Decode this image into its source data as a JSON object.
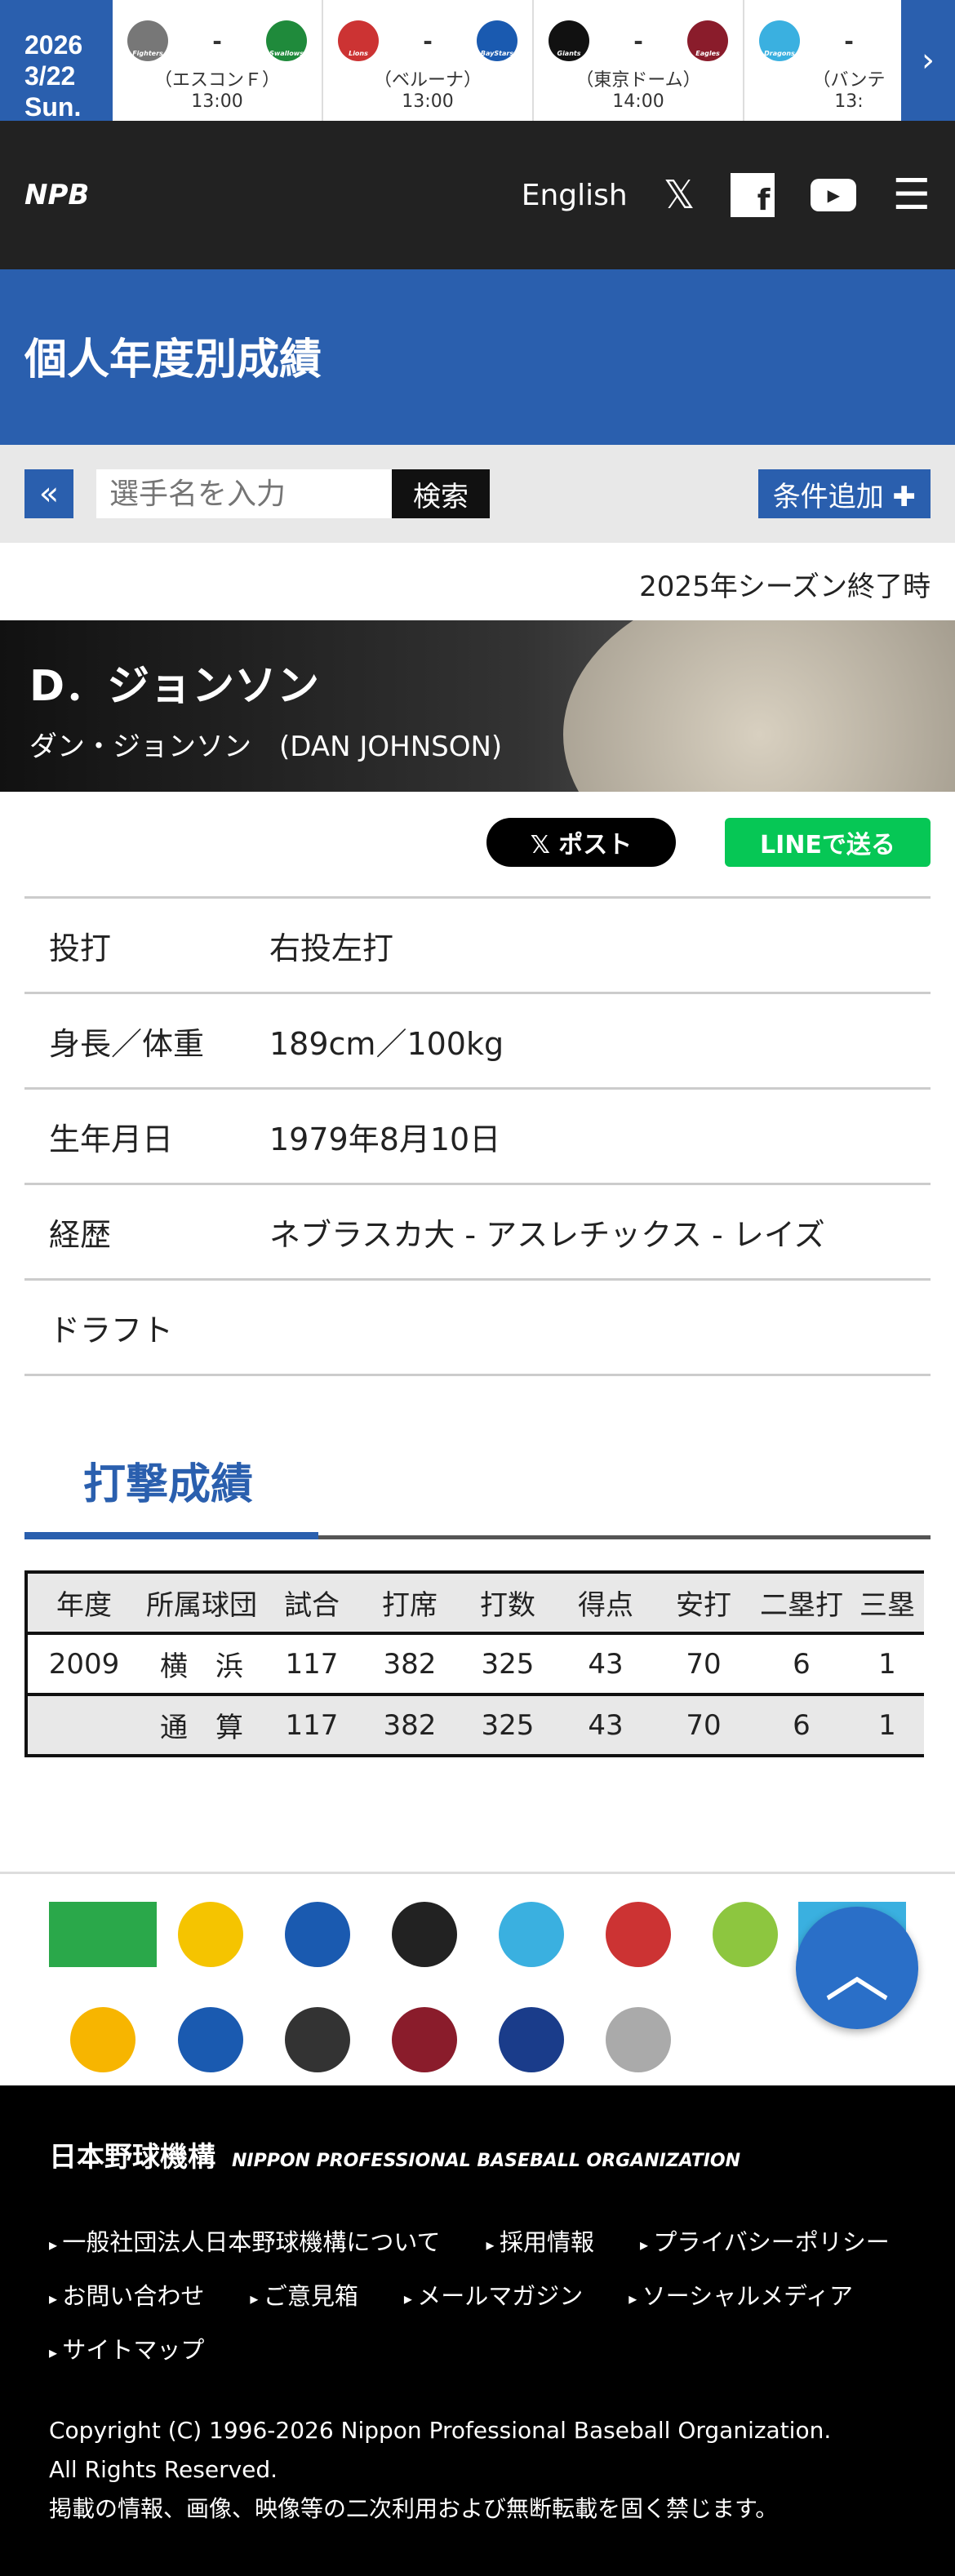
{
  "scorebar": {
    "date_year": "2026",
    "date_day": "3/22 Sun.",
    "games": [
      {
        "home": "Fighters",
        "away": "Swallows",
        "venue": "（エスコンＦ）",
        "time": "13:00",
        "home_color": "#777",
        "away_color": "#1f8a3b"
      },
      {
        "home": "Lions",
        "away": "BayStars",
        "venue": "（ベルーナ）",
        "time": "13:00",
        "home_color": "#c33",
        "away_color": "#1a5ab0"
      },
      {
        "home": "Giants",
        "away": "Eagles",
        "venue": "（東京ドーム）",
        "time": "14:00",
        "home_color": "#111",
        "away_color": "#8a1c2b"
      },
      {
        "home": "Dragons",
        "away": "",
        "venue": "（バンテ",
        "time": "13:",
        "home_color": "#3ab0e0",
        "away_color": "#fff"
      }
    ]
  },
  "header": {
    "logo": "NPB",
    "english": "English"
  },
  "page_title": "個人年度別成績",
  "search": {
    "placeholder": "選手名を入力",
    "button": "検索",
    "add_condition": "条件追加 ✚"
  },
  "season_status": "2025年シーズン終了時",
  "player": {
    "name": "D．ジョンソン",
    "kana": "ダン・ジョンソン　(DAN JOHNSON)"
  },
  "share": {
    "x": "𝕏 ポスト",
    "line": "LINEで送る"
  },
  "profile": [
    {
      "label": "投打",
      "value": "右投左打"
    },
    {
      "label": "身長／体重",
      "value": "189cm／100kg"
    },
    {
      "label": "生年月日",
      "value": "1979年8月10日"
    },
    {
      "label": "経歴",
      "value": "ネブラスカ大 - アスレチックス - レイズ"
    },
    {
      "label": "ドラフト",
      "value": ""
    }
  ],
  "batting": {
    "title": "打撃成績",
    "headers": [
      "年度",
      "所属球団",
      "試合",
      "打席",
      "打数",
      "得点",
      "安打",
      "二塁打",
      "三塁"
    ],
    "rows": [
      [
        "2009",
        "横　浜",
        "117",
        "382",
        "325",
        "43",
        "70",
        "6",
        "1"
      ],
      [
        "",
        "通　算",
        "117",
        "382",
        "325",
        "43",
        "70",
        "6",
        "1"
      ]
    ]
  },
  "teams": [
    "#2aa84a",
    "#f5c400",
    "#1a5ab0",
    "#222",
    "#3ab0e0",
    "#c33",
    "#8dc63f",
    "#3ab0e0",
    "#f7b500",
    "#1a5ab0",
    "#333",
    "#8a1c2b",
    "#1a3c8a",
    "#aaa"
  ],
  "footer": {
    "logo": "日本野球機構",
    "logo_en": "NIPPON PROFESSIONAL BASEBALL ORGANIZATION",
    "links": [
      "一般社団法人日本野球機構について",
      "採用情報",
      "プライバシーポリシー",
      "お問い合わせ",
      "ご意見箱",
      "メールマガジン",
      "ソーシャルメディア",
      "サイトマップ"
    ],
    "copyright": "Copyright (C) 1996-2026 Nippon Professional Baseball Organization.",
    "rights": "All Rights Reserved.",
    "notice": "掲載の情報、画像、映像等の二次利用および無断転載を固く禁じます。"
  }
}
